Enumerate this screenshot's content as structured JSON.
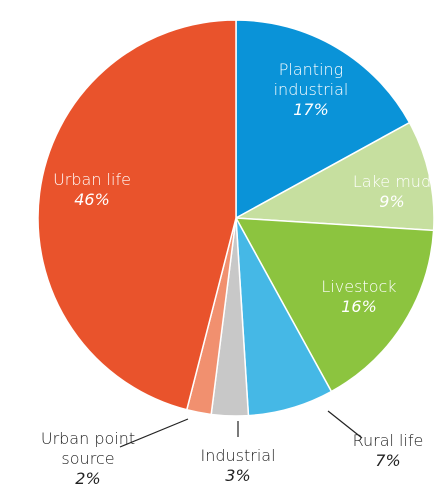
{
  "chart_data": {
    "type": "pie",
    "categories": [
      "Planting industrial",
      "Lake mud",
      "Livestock",
      "Rural life",
      "Industrial",
      "Urban point source",
      "Urban life"
    ],
    "values": [
      17,
      9,
      16,
      7,
      3,
      2,
      46
    ],
    "value_labels": [
      "17%",
      "9%",
      "16%",
      "7%",
      "3%",
      "2%",
      "46%"
    ],
    "colors": [
      "#0a93d8",
      "#c6df9f",
      "#8cc43f",
      "#45b8e6",
      "#c8c8c8",
      "#f1906f",
      "#e9532c"
    ]
  }
}
